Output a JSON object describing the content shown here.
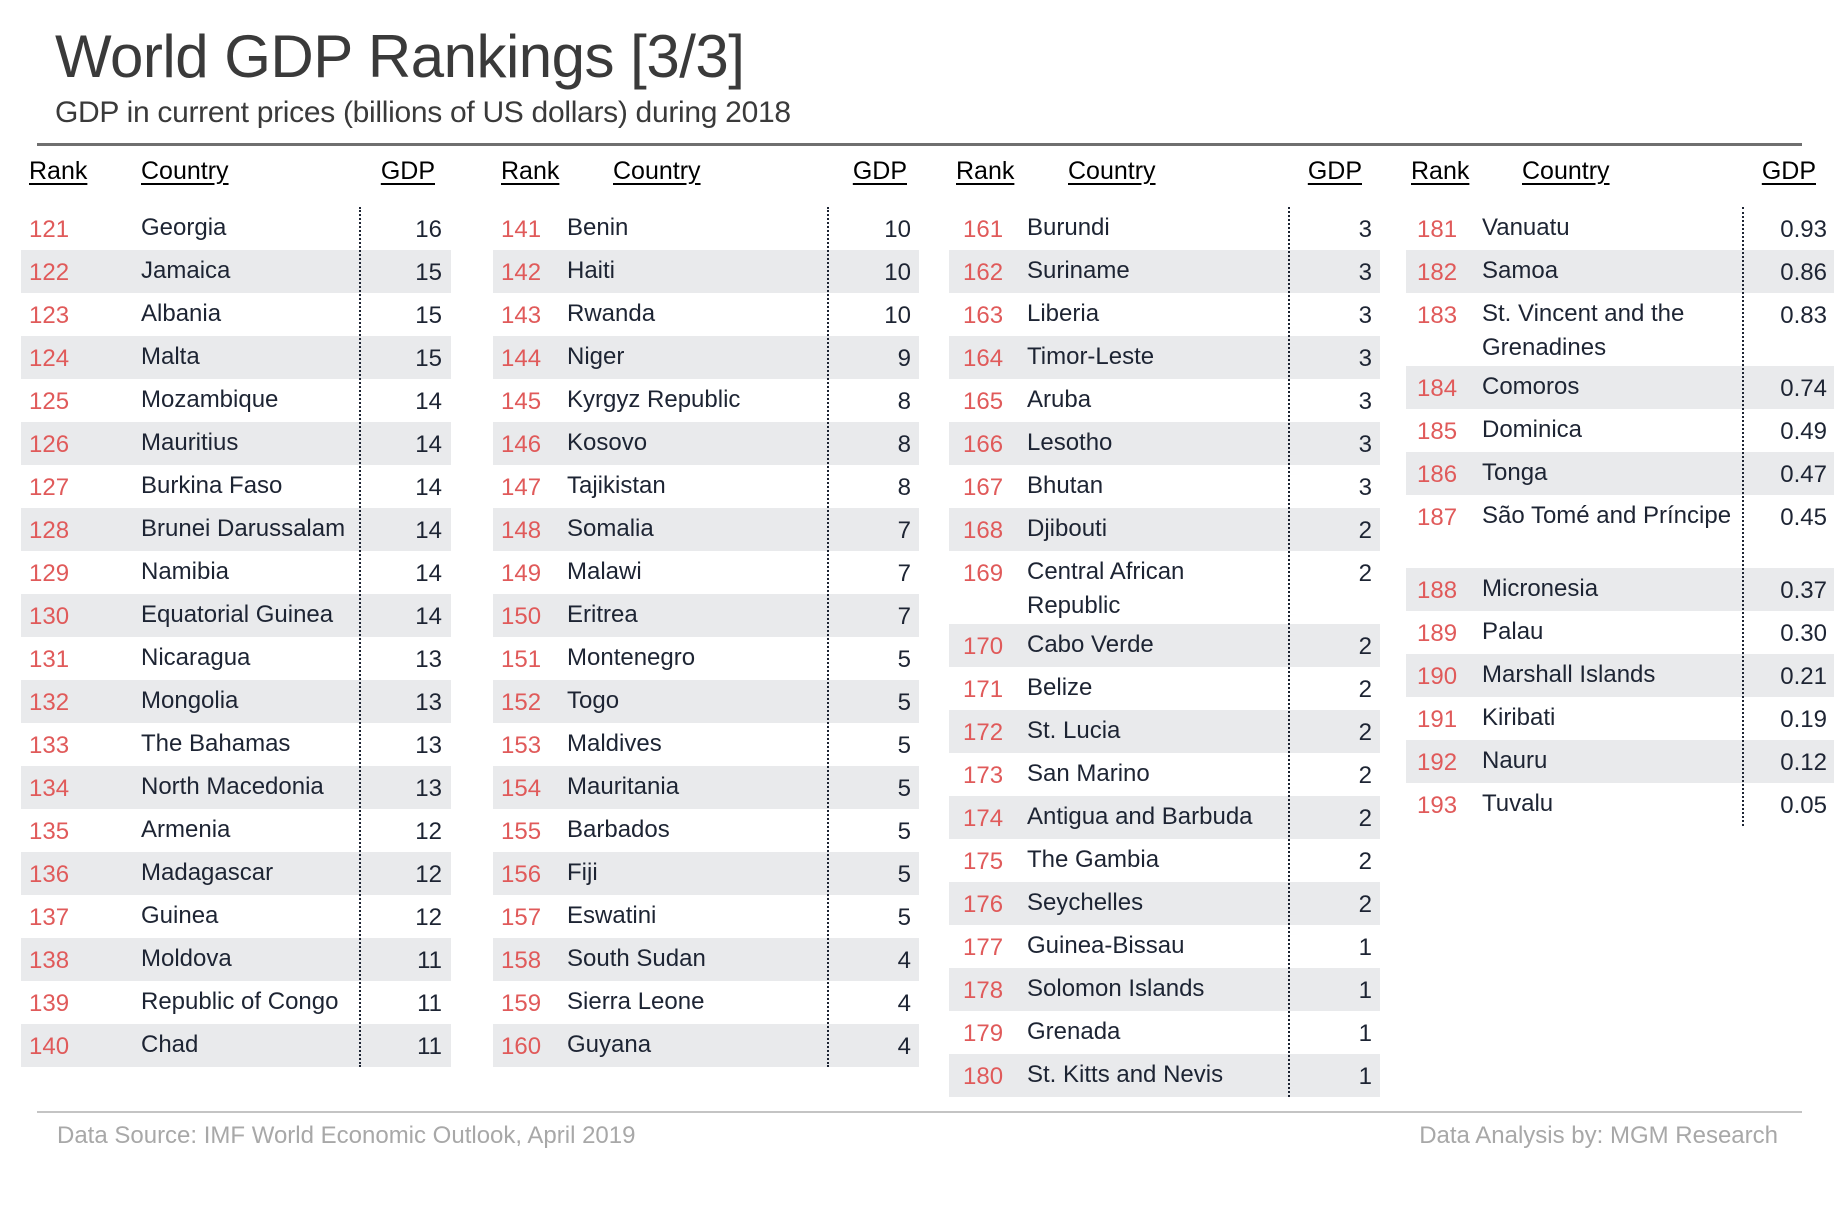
{
  "header": {
    "title": "World GDP Rankings [3/3]",
    "subtitle": "GDP in current prices (billions of US dollars) during 2018"
  },
  "columns_labels": {
    "rank": "Rank",
    "country": "Country",
    "gdp": "GDP"
  },
  "colors": {
    "rank": "#E05A5A",
    "stripe": "#E9EAEC",
    "text": "#1D2433",
    "footer": "#A8A8A8",
    "title": "#3A3A3A"
  },
  "tables": [
    {
      "rows": [
        {
          "rank": "121",
          "country": "Georgia",
          "gdp": "16"
        },
        {
          "rank": "122",
          "country": "Jamaica",
          "gdp": "15"
        },
        {
          "rank": "123",
          "country": "Albania",
          "gdp": "15"
        },
        {
          "rank": "124",
          "country": "Malta",
          "gdp": "15"
        },
        {
          "rank": "125",
          "country": "Mozambique",
          "gdp": "14"
        },
        {
          "rank": "126",
          "country": "Mauritius",
          "gdp": "14"
        },
        {
          "rank": "127",
          "country": "Burkina Faso",
          "gdp": "14"
        },
        {
          "rank": "128",
          "country": "Brunei Darussalam",
          "gdp": "14"
        },
        {
          "rank": "129",
          "country": "Namibia",
          "gdp": "14"
        },
        {
          "rank": "130",
          "country": "Equatorial Guinea",
          "gdp": "14"
        },
        {
          "rank": "131",
          "country": "Nicaragua",
          "gdp": "13"
        },
        {
          "rank": "132",
          "country": "Mongolia",
          "gdp": "13"
        },
        {
          "rank": "133",
          "country": "The Bahamas",
          "gdp": "13"
        },
        {
          "rank": "134",
          "country": "North Macedonia",
          "gdp": "13"
        },
        {
          "rank": "135",
          "country": "Armenia",
          "gdp": "12"
        },
        {
          "rank": "136",
          "country": "Madagascar",
          "gdp": "12"
        },
        {
          "rank": "137",
          "country": "Guinea",
          "gdp": "12"
        },
        {
          "rank": "138",
          "country": "Moldova",
          "gdp": "11"
        },
        {
          "rank": "139",
          "country": "Republic of Congo",
          "gdp": "11"
        },
        {
          "rank": "140",
          "country": "Chad",
          "gdp": "11"
        }
      ]
    },
    {
      "rows": [
        {
          "rank": "141",
          "country": "Benin",
          "gdp": "10"
        },
        {
          "rank": "142",
          "country": "Haiti",
          "gdp": "10"
        },
        {
          "rank": "143",
          "country": "Rwanda",
          "gdp": "10"
        },
        {
          "rank": "144",
          "country": "Niger",
          "gdp": "9"
        },
        {
          "rank": "145",
          "country": "Kyrgyz Republic",
          "gdp": "8"
        },
        {
          "rank": "146",
          "country": "Kosovo",
          "gdp": "8"
        },
        {
          "rank": "147",
          "country": "Tajikistan",
          "gdp": "8"
        },
        {
          "rank": "148",
          "country": "Somalia",
          "gdp": "7"
        },
        {
          "rank": "149",
          "country": "Malawi",
          "gdp": "7"
        },
        {
          "rank": "150",
          "country": "Eritrea",
          "gdp": "7"
        },
        {
          "rank": "151",
          "country": "Montenegro",
          "gdp": "5"
        },
        {
          "rank": "152",
          "country": "Togo",
          "gdp": "5"
        },
        {
          "rank": "153",
          "country": "Maldives",
          "gdp": "5"
        },
        {
          "rank": "154",
          "country": "Mauritania",
          "gdp": "5"
        },
        {
          "rank": "155",
          "country": "Barbados",
          "gdp": "5"
        },
        {
          "rank": "156",
          "country": "Fiji",
          "gdp": "5"
        },
        {
          "rank": "157",
          "country": "Eswatini",
          "gdp": "5"
        },
        {
          "rank": "158",
          "country": "South Sudan",
          "gdp": "4"
        },
        {
          "rank": "159",
          "country": "Sierra Leone",
          "gdp": "4"
        },
        {
          "rank": "160",
          "country": "Guyana",
          "gdp": "4"
        }
      ]
    },
    {
      "rows": [
        {
          "rank": "161",
          "country": "Burundi",
          "gdp": "3"
        },
        {
          "rank": "162",
          "country": "Suriname",
          "gdp": "3"
        },
        {
          "rank": "163",
          "country": "Liberia",
          "gdp": "3"
        },
        {
          "rank": "164",
          "country": "Timor-Leste",
          "gdp": "3"
        },
        {
          "rank": "165",
          "country": "Aruba",
          "gdp": "3"
        },
        {
          "rank": "166",
          "country": "Lesotho",
          "gdp": "3"
        },
        {
          "rank": "167",
          "country": "Bhutan",
          "gdp": "3"
        },
        {
          "rank": "168",
          "country": "Djibouti",
          "gdp": "2"
        },
        {
          "rank": "169",
          "country": "Central African Republic",
          "gdp": "2",
          "wrap": true
        },
        {
          "rank": "170",
          "country": "Cabo Verde",
          "gdp": "2"
        },
        {
          "rank": "171",
          "country": "Belize",
          "gdp": "2"
        },
        {
          "rank": "172",
          "country": "St. Lucia",
          "gdp": "2"
        },
        {
          "rank": "173",
          "country": "San Marino",
          "gdp": "2"
        },
        {
          "rank": "174",
          "country": "Antigua and Barbuda",
          "gdp": "2"
        },
        {
          "rank": "175",
          "country": "The Gambia",
          "gdp": "2"
        },
        {
          "rank": "176",
          "country": "Seychelles",
          "gdp": "2"
        },
        {
          "rank": "177",
          "country": "Guinea-Bissau",
          "gdp": "1"
        },
        {
          "rank": "178",
          "country": "Solomon Islands",
          "gdp": "1"
        },
        {
          "rank": "179",
          "country": "Grenada",
          "gdp": "1"
        },
        {
          "rank": "180",
          "country": "St. Kitts and Nevis",
          "gdp": "1"
        }
      ]
    },
    {
      "rows": [
        {
          "rank": "181",
          "country": "Vanuatu",
          "gdp": "0.93"
        },
        {
          "rank": "182",
          "country": "Samoa",
          "gdp": "0.86"
        },
        {
          "rank": "183",
          "country": "St. Vincent and the Grenadines",
          "gdp": "0.83",
          "wrap": true
        },
        {
          "rank": "184",
          "country": "Comoros",
          "gdp": "0.74"
        },
        {
          "rank": "185",
          "country": "Dominica",
          "gdp": "0.49"
        },
        {
          "rank": "186",
          "country": "Tonga",
          "gdp": "0.47"
        },
        {
          "rank": "187",
          "country": "São Tomé and Príncipe",
          "gdp": "0.45",
          "wrap": true
        },
        {
          "rank": "188",
          "country": "Micronesia",
          "gdp": "0.37"
        },
        {
          "rank": "189",
          "country": "Palau",
          "gdp": "0.30"
        },
        {
          "rank": "190",
          "country": "Marshall Islands",
          "gdp": "0.21"
        },
        {
          "rank": "191",
          "country": "Kiribati",
          "gdp": "0.19"
        },
        {
          "rank": "192",
          "country": "Nauru",
          "gdp": "0.12"
        },
        {
          "rank": "193",
          "country": "Tuvalu",
          "gdp": "0.05"
        }
      ]
    }
  ],
  "footer": {
    "source": "Data Source: IMF World Economic Outlook, April 2019",
    "credit": "Data Analysis by: MGM Research"
  },
  "chart_data": {
    "type": "table",
    "title": "World GDP Rankings [3/3]",
    "subtitle": "GDP in current prices (billions of US dollars) during 2018",
    "columns": [
      "Rank",
      "Country",
      "GDP"
    ],
    "rows": [
      [
        121,
        "Georgia",
        16
      ],
      [
        122,
        "Jamaica",
        15
      ],
      [
        123,
        "Albania",
        15
      ],
      [
        124,
        "Malta",
        15
      ],
      [
        125,
        "Mozambique",
        14
      ],
      [
        126,
        "Mauritius",
        14
      ],
      [
        127,
        "Burkina Faso",
        14
      ],
      [
        128,
        "Brunei Darussalam",
        14
      ],
      [
        129,
        "Namibia",
        14
      ],
      [
        130,
        "Equatorial Guinea",
        14
      ],
      [
        131,
        "Nicaragua",
        13
      ],
      [
        132,
        "Mongolia",
        13
      ],
      [
        133,
        "The Bahamas",
        13
      ],
      [
        134,
        "North Macedonia",
        13
      ],
      [
        135,
        "Armenia",
        12
      ],
      [
        136,
        "Madagascar",
        12
      ],
      [
        137,
        "Guinea",
        12
      ],
      [
        138,
        "Moldova",
        11
      ],
      [
        139,
        "Republic of Congo",
        11
      ],
      [
        140,
        "Chad",
        11
      ],
      [
        141,
        "Benin",
        10
      ],
      [
        142,
        "Haiti",
        10
      ],
      [
        143,
        "Rwanda",
        10
      ],
      [
        144,
        "Niger",
        9
      ],
      [
        145,
        "Kyrgyz Republic",
        8
      ],
      [
        146,
        "Kosovo",
        8
      ],
      [
        147,
        "Tajikistan",
        8
      ],
      [
        148,
        "Somalia",
        7
      ],
      [
        149,
        "Malawi",
        7
      ],
      [
        150,
        "Eritrea",
        7
      ],
      [
        151,
        "Montenegro",
        5
      ],
      [
        152,
        "Togo",
        5
      ],
      [
        153,
        "Maldives",
        5
      ],
      [
        154,
        "Mauritania",
        5
      ],
      [
        155,
        "Barbados",
        5
      ],
      [
        156,
        "Fiji",
        5
      ],
      [
        157,
        "Eswatini",
        5
      ],
      [
        158,
        "South Sudan",
        4
      ],
      [
        159,
        "Sierra Leone",
        4
      ],
      [
        160,
        "Guyana",
        4
      ],
      [
        161,
        "Burundi",
        3
      ],
      [
        162,
        "Suriname",
        3
      ],
      [
        163,
        "Liberia",
        3
      ],
      [
        164,
        "Timor-Leste",
        3
      ],
      [
        165,
        "Aruba",
        3
      ],
      [
        166,
        "Lesotho",
        3
      ],
      [
        167,
        "Bhutan",
        3
      ],
      [
        168,
        "Djibouti",
        2
      ],
      [
        169,
        "Central African Republic",
        2
      ],
      [
        170,
        "Cabo Verde",
        2
      ],
      [
        171,
        "Belize",
        2
      ],
      [
        172,
        "St. Lucia",
        2
      ],
      [
        173,
        "San Marino",
        2
      ],
      [
        174,
        "Antigua and Barbuda",
        2
      ],
      [
        175,
        "The Gambia",
        2
      ],
      [
        176,
        "Seychelles",
        2
      ],
      [
        177,
        "Guinea-Bissau",
        1
      ],
      [
        178,
        "Solomon Islands",
        1
      ],
      [
        179,
        "Grenada",
        1
      ],
      [
        180,
        "St. Kitts and Nevis",
        1
      ],
      [
        181,
        "Vanuatu",
        0.93
      ],
      [
        182,
        "Samoa",
        0.86
      ],
      [
        183,
        "St. Vincent and the Grenadines",
        0.83
      ],
      [
        184,
        "Comoros",
        0.74
      ],
      [
        185,
        "Dominica",
        0.49
      ],
      [
        186,
        "Tonga",
        0.47
      ],
      [
        187,
        "São Tomé and Príncipe",
        0.45
      ],
      [
        188,
        "Micronesia",
        0.37
      ],
      [
        189,
        "Palau",
        0.3
      ],
      [
        190,
        "Marshall Islands",
        0.21
      ],
      [
        191,
        "Kiribati",
        0.19
      ],
      [
        192,
        "Nauru",
        0.12
      ],
      [
        193,
        "Tuvalu",
        0.05
      ]
    ],
    "source": "Data Source: IMF World Economic Outlook, April 2019",
    "credit": "Data Analysis by: MGM Research"
  }
}
